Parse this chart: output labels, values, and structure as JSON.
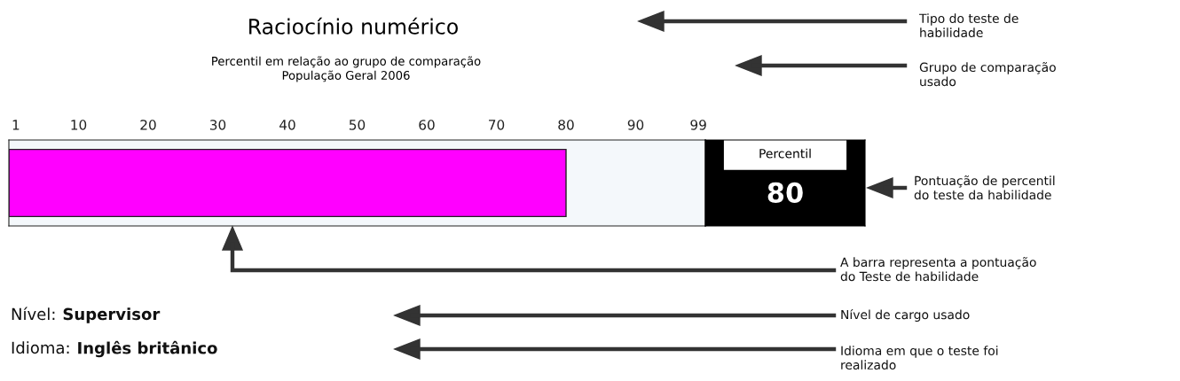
{
  "chart_data": {
    "type": "bar",
    "orientation": "horizontal",
    "title": "Raciocínio numérico",
    "subtitle": "Percentil em relação ao grupo de comparação\nPopulação Geral 2006",
    "categories": [
      null
    ],
    "values": [
      80
    ],
    "color": "#ff00ff",
    "xlim": [
      0,
      100
    ],
    "xticks": [
      1,
      10,
      20,
      30,
      40,
      50,
      60,
      70,
      80,
      90,
      99
    ],
    "grid": false,
    "annotations": [
      "Percentil",
      "Tipo do teste de\nhabilidade",
      "Grupo de comparação\nusado",
      "Pontuação de percentil\ndo teste da habilidade",
      "A barra representa a pontuação\ndo Teste de habilidade",
      "Nível:",
      "Supervisor",
      "Nível de cargo usado",
      "Idioma:",
      "Inglês britânico",
      "Idioma em que o teste foi\nrealizado",
      "80"
    ]
  }
}
